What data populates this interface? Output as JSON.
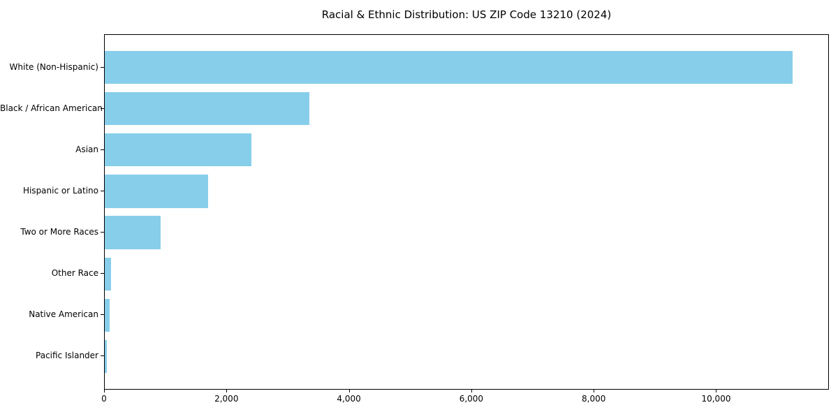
{
  "chart_data": {
    "type": "bar",
    "orientation": "horizontal",
    "title": "Racial & Ethnic Distribution: US ZIP Code 13210 (2024)",
    "categories": [
      "White (Non-Hispanic)",
      "Black / African American",
      "Asian",
      "Hispanic or Latino",
      "Two or More Races",
      "Other Race",
      "Native American",
      "Pacific Islander"
    ],
    "values": [
      11240,
      3340,
      2400,
      1690,
      910,
      100,
      80,
      30
    ],
    "xlabel": "",
    "ylabel": "",
    "xlim": [
      0,
      11820
    ],
    "x_ticks": [
      0,
      2000,
      4000,
      6000,
      8000,
      10000
    ],
    "x_tick_labels": [
      "0",
      "2,000",
      "4,000",
      "6,000",
      "8,000",
      "10,000"
    ],
    "bar_color": "#87CEEB",
    "background_color": "#ffffff",
    "axis_color": "#000000",
    "grid": false,
    "legend": false
  }
}
